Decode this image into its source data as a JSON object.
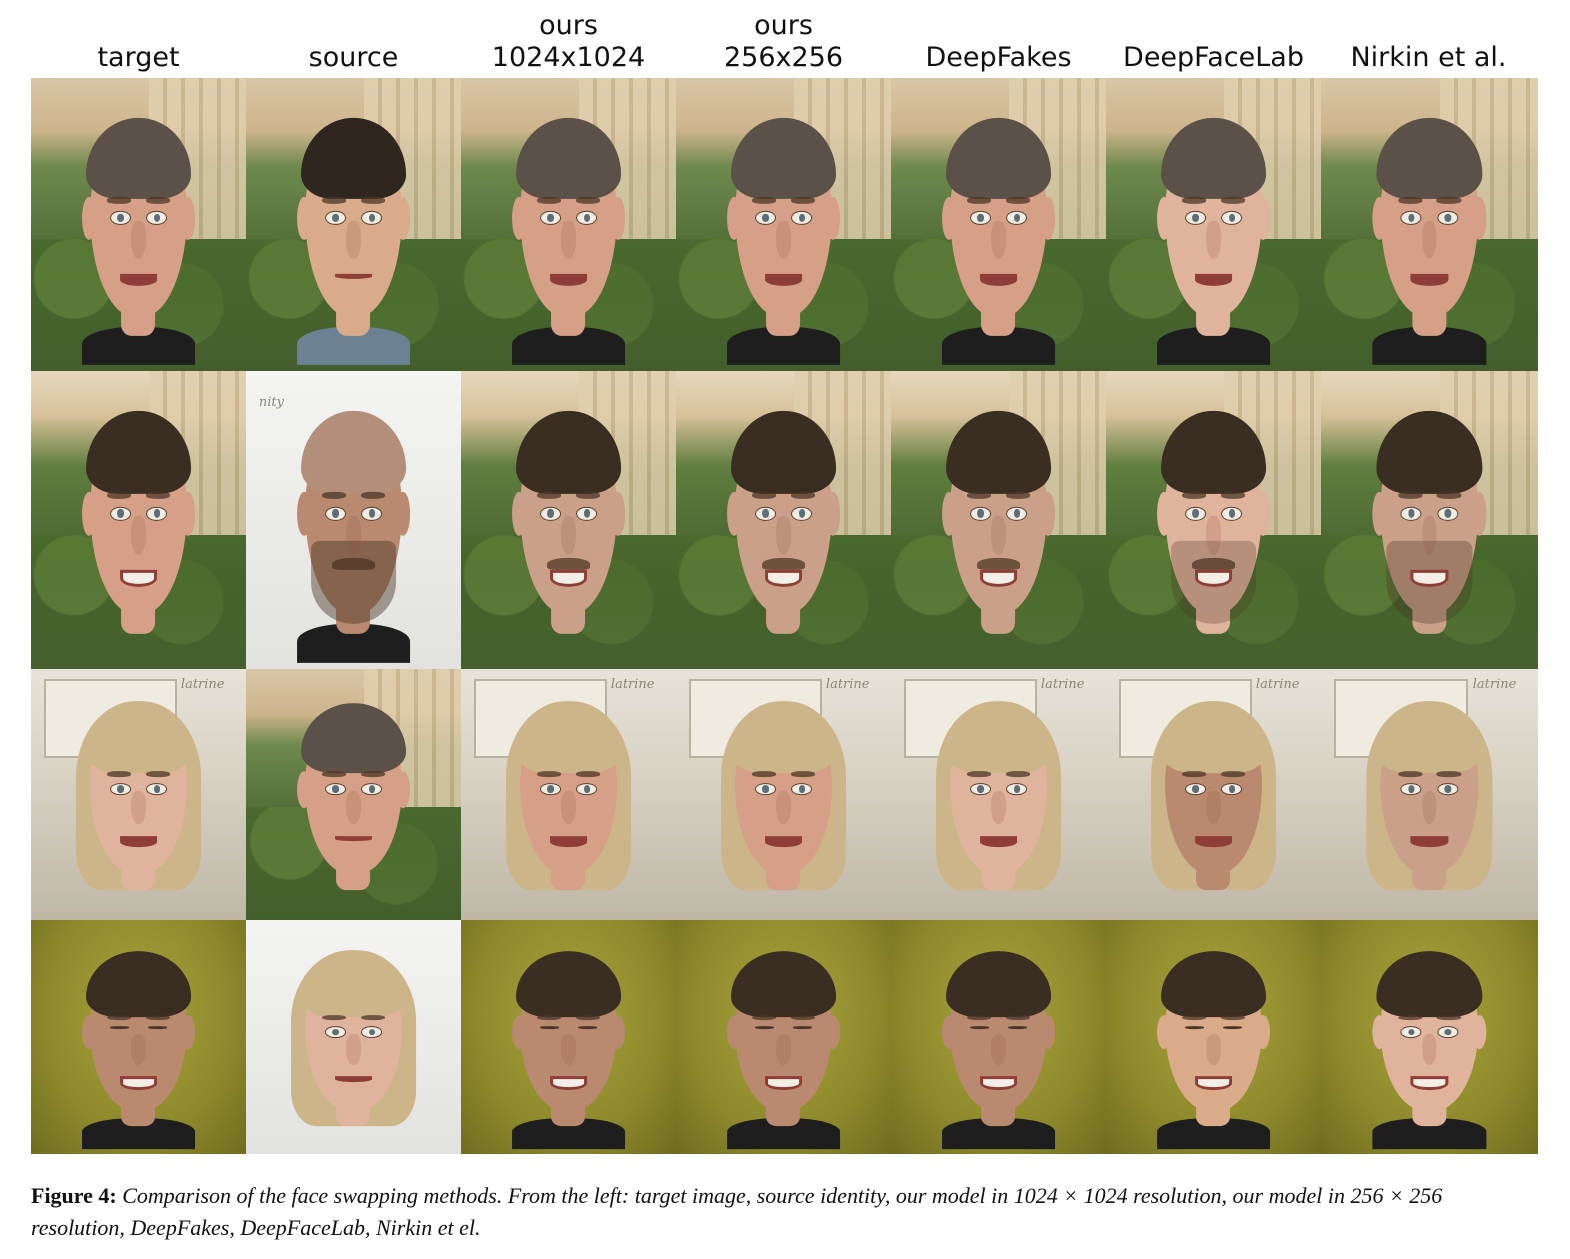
{
  "columns": [
    {
      "line1": "",
      "line2": "target"
    },
    {
      "line1": "",
      "line2": "source"
    },
    {
      "line1": "ours",
      "line2": "1024x1024"
    },
    {
      "line1": "ours",
      "line2": "256x256"
    },
    {
      "line1": "",
      "line2": "DeepFakes"
    },
    {
      "line1": "",
      "line2": "DeepFaceLab"
    },
    {
      "line1": "",
      "line2": "Nirkin et al."
    }
  ],
  "background_text": {
    "poster_word": "latrine",
    "poster_word_2": "nity"
  },
  "caption": {
    "label": "Figure 4:",
    "body": "Comparison of the face swapping methods. From the left: target image, source identity, our model in 1024 × 1024 resolution, our model in 256 × 256 resolution, DeepFakes, DeepFaceLab, Nirkin et el."
  }
}
